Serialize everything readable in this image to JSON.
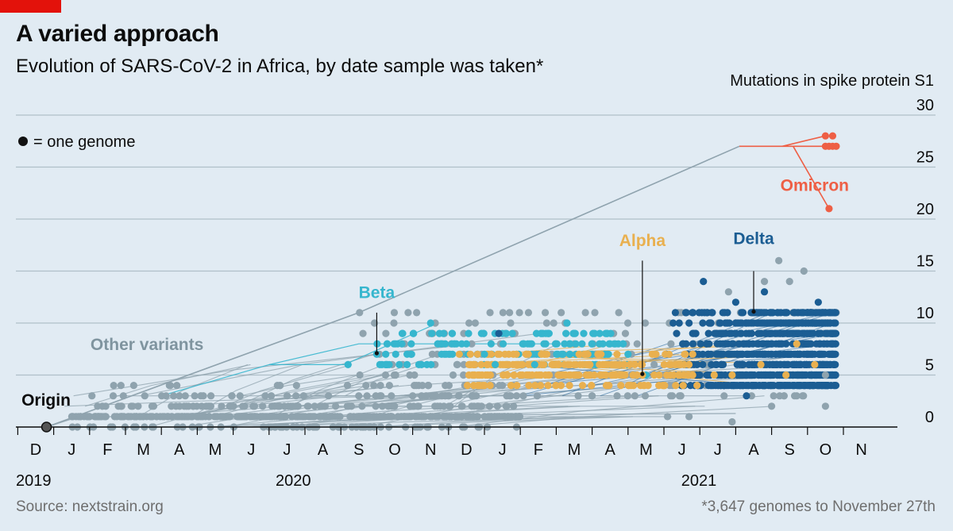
{
  "header": {
    "title": "A varied approach",
    "subtitle": "Evolution of SARS-CoV-2 in Africa, by date sample was taken*"
  },
  "footer": {
    "source": "Source: nextstrain.org",
    "footnote": "*3,647 genomes to November 27th"
  },
  "colors": {
    "background": "#e1ebf3",
    "brand_red": "#e3120b",
    "other": "#8fa3ae",
    "beta": "#36b6ce",
    "alpha": "#e9b04f",
    "delta": "#1b5d93",
    "omicron": "#ee5f45",
    "grid": "#b0bfc8"
  },
  "chart_data": {
    "type": "scatter",
    "title": "A varied approach",
    "subtitle": "Evolution of SARS-CoV-2 in Africa, by date sample was taken*",
    "ylabel": "Mutations in spike protein S1",
    "ylim": [
      0,
      30
    ],
    "yticks": [
      0,
      5,
      10,
      15,
      20,
      25,
      30
    ],
    "xlim": [
      -0.5,
      22.8
    ],
    "x_unit": "months since December 2019 (0 = Dec 2019)",
    "x_month_labels": [
      "D",
      "J",
      "F",
      "M",
      "A",
      "M",
      "J",
      "J",
      "A",
      "S",
      "O",
      "N",
      "D",
      "J",
      "F",
      "M",
      "A",
      "M",
      "J",
      "J",
      "A",
      "S",
      "O",
      "N"
    ],
    "x_year_labels": [
      {
        "label": "2019",
        "x": 0
      },
      {
        "label": "2020",
        "x": 7.3
      },
      {
        "label": "2021",
        "x": 18.6
      }
    ],
    "legend": {
      "marker": "●",
      "text": "= one genome"
    },
    "origin": {
      "label": "Origin",
      "x": 0.3,
      "y": 0
    },
    "variants": [
      {
        "name": "Other variants",
        "label_x": 3.1,
        "label_y": 7.4
      },
      {
        "name": "Beta",
        "label_x": 9.5,
        "label_y": 12.4,
        "pointer": [
          [
            9.5,
            11.0
          ],
          [
            9.5,
            7.1
          ]
        ]
      },
      {
        "name": "Alpha",
        "label_x": 16.9,
        "label_y": 17.4,
        "pointer": [
          [
            16.9,
            16.0
          ],
          [
            16.9,
            5.1
          ]
        ]
      },
      {
        "name": "Delta",
        "label_x": 20.0,
        "label_y": 17.6,
        "pointer": [
          [
            20.0,
            15.0
          ],
          [
            20.0,
            11.1
          ]
        ]
      },
      {
        "name": "Omicron",
        "label_x": 21.7,
        "label_y": 22.7
      }
    ],
    "series": [
      {
        "name": "Other variants",
        "color": "#8fa3ae",
        "note": "Bulk distribution drawn procedurally; listed points are highlighted outliers",
        "points": [
          [
            4.0,
            3
          ],
          [
            2.7,
            2
          ],
          [
            13.2,
            11
          ],
          [
            20.7,
            16
          ],
          [
            21.4,
            15
          ],
          [
            19.3,
            13
          ],
          [
            20.3,
            14
          ],
          [
            21.0,
            14
          ],
          [
            22.0,
            5
          ],
          [
            21.2,
            3
          ],
          [
            20.5,
            2
          ],
          [
            17.6,
            1
          ],
          [
            18.2,
            1
          ],
          [
            19.4,
            0.5
          ],
          [
            22.0,
            2
          ],
          [
            11.5,
            0
          ]
        ]
      },
      {
        "name": "Beta",
        "color": "#36b6ce",
        "points": [
          [
            11.0,
            10
          ],
          [
            8.7,
            6
          ],
          [
            9.5,
            7
          ],
          [
            10.2,
            8
          ],
          [
            11.3,
            8
          ],
          [
            12.0,
            8
          ],
          [
            12.5,
            7
          ],
          [
            13.0,
            9
          ],
          [
            13.6,
            8
          ],
          [
            14.3,
            9
          ],
          [
            15.0,
            9
          ],
          [
            15.8,
            8
          ],
          [
            14.8,
            10
          ],
          [
            16.5,
            7
          ],
          [
            17.0,
            5
          ],
          [
            12.8,
            6
          ],
          [
            13.9,
            6
          ]
        ]
      },
      {
        "name": "Alpha",
        "color": "#e9b04f",
        "points": [
          [
            11.8,
            7
          ],
          [
            12.6,
            6
          ],
          [
            13.4,
            6
          ],
          [
            14.2,
            5
          ],
          [
            15.0,
            5
          ],
          [
            15.8,
            6
          ],
          [
            16.4,
            6
          ],
          [
            16.9,
            5
          ],
          [
            17.5,
            4
          ],
          [
            18.3,
            5
          ],
          [
            19.4,
            5
          ],
          [
            20.2,
            6
          ],
          [
            20.9,
            5
          ],
          [
            21.7,
            6
          ],
          [
            15.3,
            7
          ],
          [
            16.1,
            5
          ],
          [
            17.8,
            6
          ],
          [
            18.9,
            5
          ],
          [
            21.2,
            8
          ]
        ]
      },
      {
        "name": "Delta",
        "color": "#1b5d93",
        "points": [
          [
            18.6,
            14
          ],
          [
            12.9,
            9
          ],
          [
            20.3,
            4
          ],
          [
            20.7,
            4
          ],
          [
            21.8,
            12
          ],
          [
            22.2,
            11
          ],
          [
            22.2,
            7
          ],
          [
            19.8,
            3
          ],
          [
            20.3,
            13
          ],
          [
            19.5,
            12
          ],
          [
            18.2,
            10
          ]
        ]
      },
      {
        "name": "Omicron",
        "color": "#ee5f45",
        "points": [
          [
            22.0,
            28
          ],
          [
            22.2,
            28
          ],
          [
            22.0,
            27
          ],
          [
            22.1,
            27
          ],
          [
            22.2,
            27
          ],
          [
            22.3,
            27
          ],
          [
            22.1,
            21
          ]
        ],
        "branches": [
          [
            [
              19.6,
              27
            ],
            [
              20.8,
              27
            ],
            [
              22.0,
              28
            ]
          ],
          [
            [
              20.8,
              27
            ],
            [
              22.3,
              27
            ]
          ],
          [
            [
              21.1,
              27
            ],
            [
              22.1,
              21
            ]
          ]
        ]
      },
      {
        "name": "Omicron lineage",
        "color": "#8fa3ae",
        "branches": [
          [
            [
              0.3,
              0
            ],
            [
              9.0,
              11
            ],
            [
              19.6,
              27
            ]
          ]
        ]
      }
    ]
  }
}
